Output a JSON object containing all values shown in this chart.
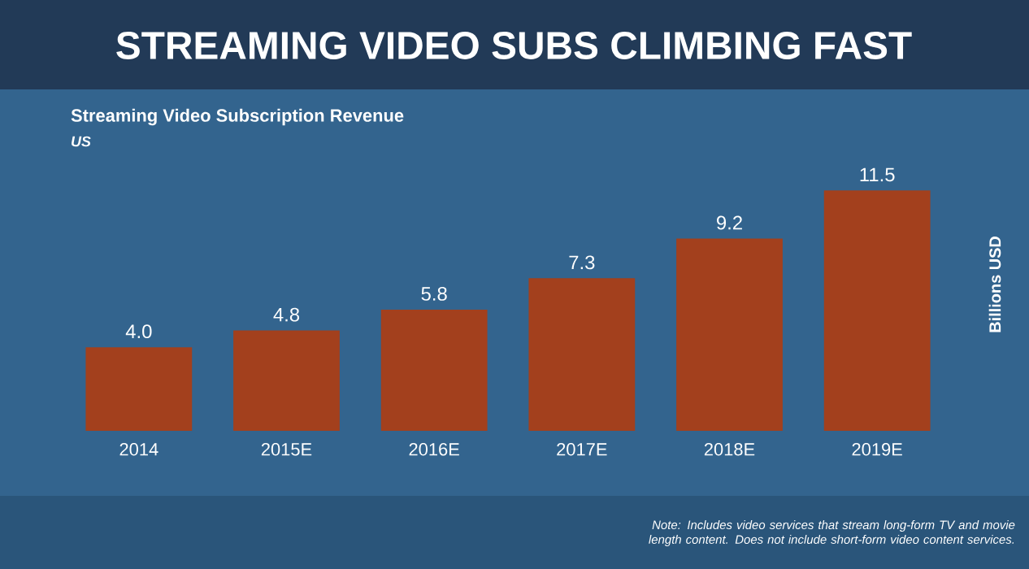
{
  "chart_data": {
    "type": "bar",
    "title": "STREAMING VIDEO SUBS CLIMBING FAST",
    "subtitle": "Streaming Video Subscription Revenue",
    "annotations": [
      "US",
      "Note: Includes video services that stream long-form TV and movie length content. Does not include short-form video content services."
    ],
    "ylabel": "Billions USD",
    "categories": [
      "2014",
      "2015E",
      "2016E",
      "2017E",
      "2018E",
      "2019E"
    ],
    "values": [
      4.0,
      4.8,
      5.8,
      7.3,
      9.2,
      11.5
    ],
    "value_labels": [
      "4.0",
      "4.8",
      "5.8",
      "7.3",
      "9.2",
      "11.5"
    ],
    "color": "#a3401d"
  }
}
